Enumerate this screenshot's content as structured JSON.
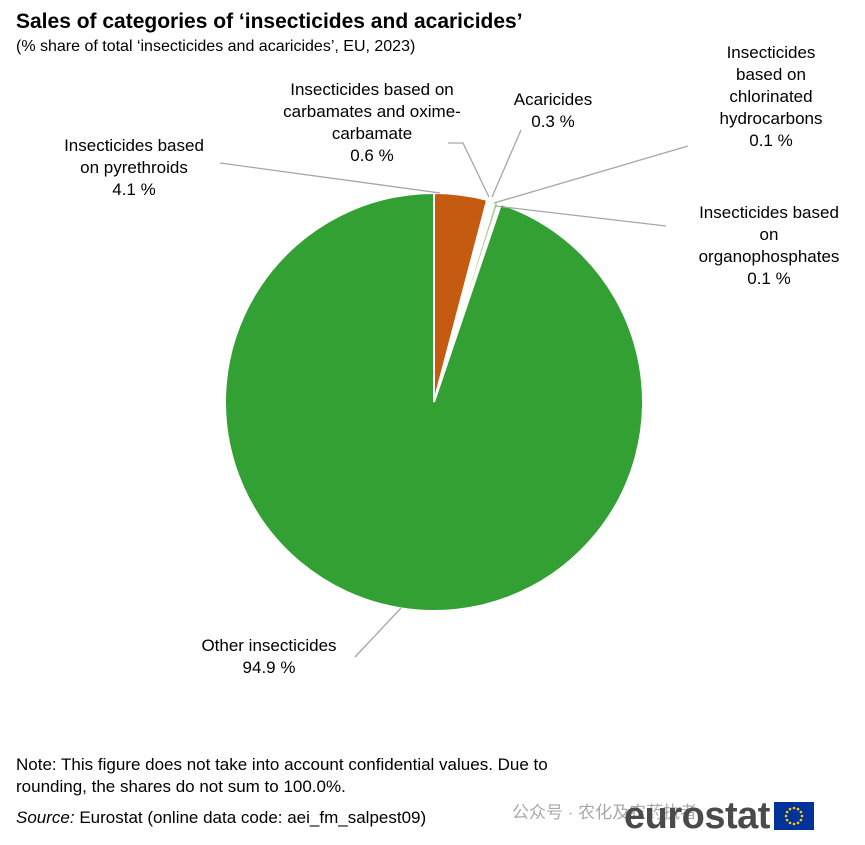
{
  "title": "Sales of categories of ‘insecticides and acaricides’",
  "subtitle": "(% share of total ‘insecticides and acaricides’, EU, 2023)",
  "chart_data": {
    "type": "pie",
    "title": "Sales of categories of ‘insecticides and acaricides’",
    "subtitle": "(% share of total ‘insecticides and acaricides’, EU, 2023)",
    "unit": "%",
    "slices": [
      {
        "name": "Insecticides based on pyrethroids",
        "value": 4.1,
        "label_text": "4.1 %",
        "color": "#c55a11"
      },
      {
        "name": "Insecticides based on carbamates and oxime-carbamate",
        "value": 0.6,
        "label_text": "0.6 %",
        "color": "#ffffff"
      },
      {
        "name": "Acaricides",
        "value": 0.3,
        "label_text": "0.3 %",
        "color": "#a9d18e"
      },
      {
        "name": "Insecticides based on chlorinated hydrocarbons",
        "value": 0.1,
        "label_text": "0.1 %",
        "color": "#f4b183"
      },
      {
        "name": "Insecticides based on organophosphates",
        "value": 0.1,
        "label_text": "0.1 %",
        "color": "#70ad47"
      },
      {
        "name": "Other insecticides",
        "value": 94.9,
        "label_text": "94.9 %",
        "color": "#33a033"
      }
    ],
    "labels": [
      {
        "lines": [
          "Insecticides based",
          "on pyrethroids",
          "4.1 %"
        ]
      },
      {
        "lines": [
          "Insecticides based on",
          "carbamates and oxime-",
          "carbamate",
          "0.6 %"
        ]
      },
      {
        "lines": [
          "Acaricides",
          "0.3 %"
        ]
      },
      {
        "lines": [
          "Insecticides",
          "based on",
          "chlorinated",
          "hydrocarbons",
          "0.1 %"
        ]
      },
      {
        "lines": [
          "Insecticides based",
          "on",
          "organophosphates",
          "0.1 %"
        ]
      },
      {
        "lines": [
          "Other insecticides",
          "94.9 %"
        ]
      }
    ]
  },
  "note": "Note: This figure does not take into account confidential values. Due to rounding, the shares do not sum to 100.0%.",
  "source": {
    "label": "Source:",
    "text": " Eurostat (online data code: aei_fm_salpest09)"
  },
  "watermark": "公众号 · 农化及农药执者",
  "logo": {
    "text": "eurostat",
    "flag_color": "#003399",
    "star_color": "#ffcc00"
  }
}
